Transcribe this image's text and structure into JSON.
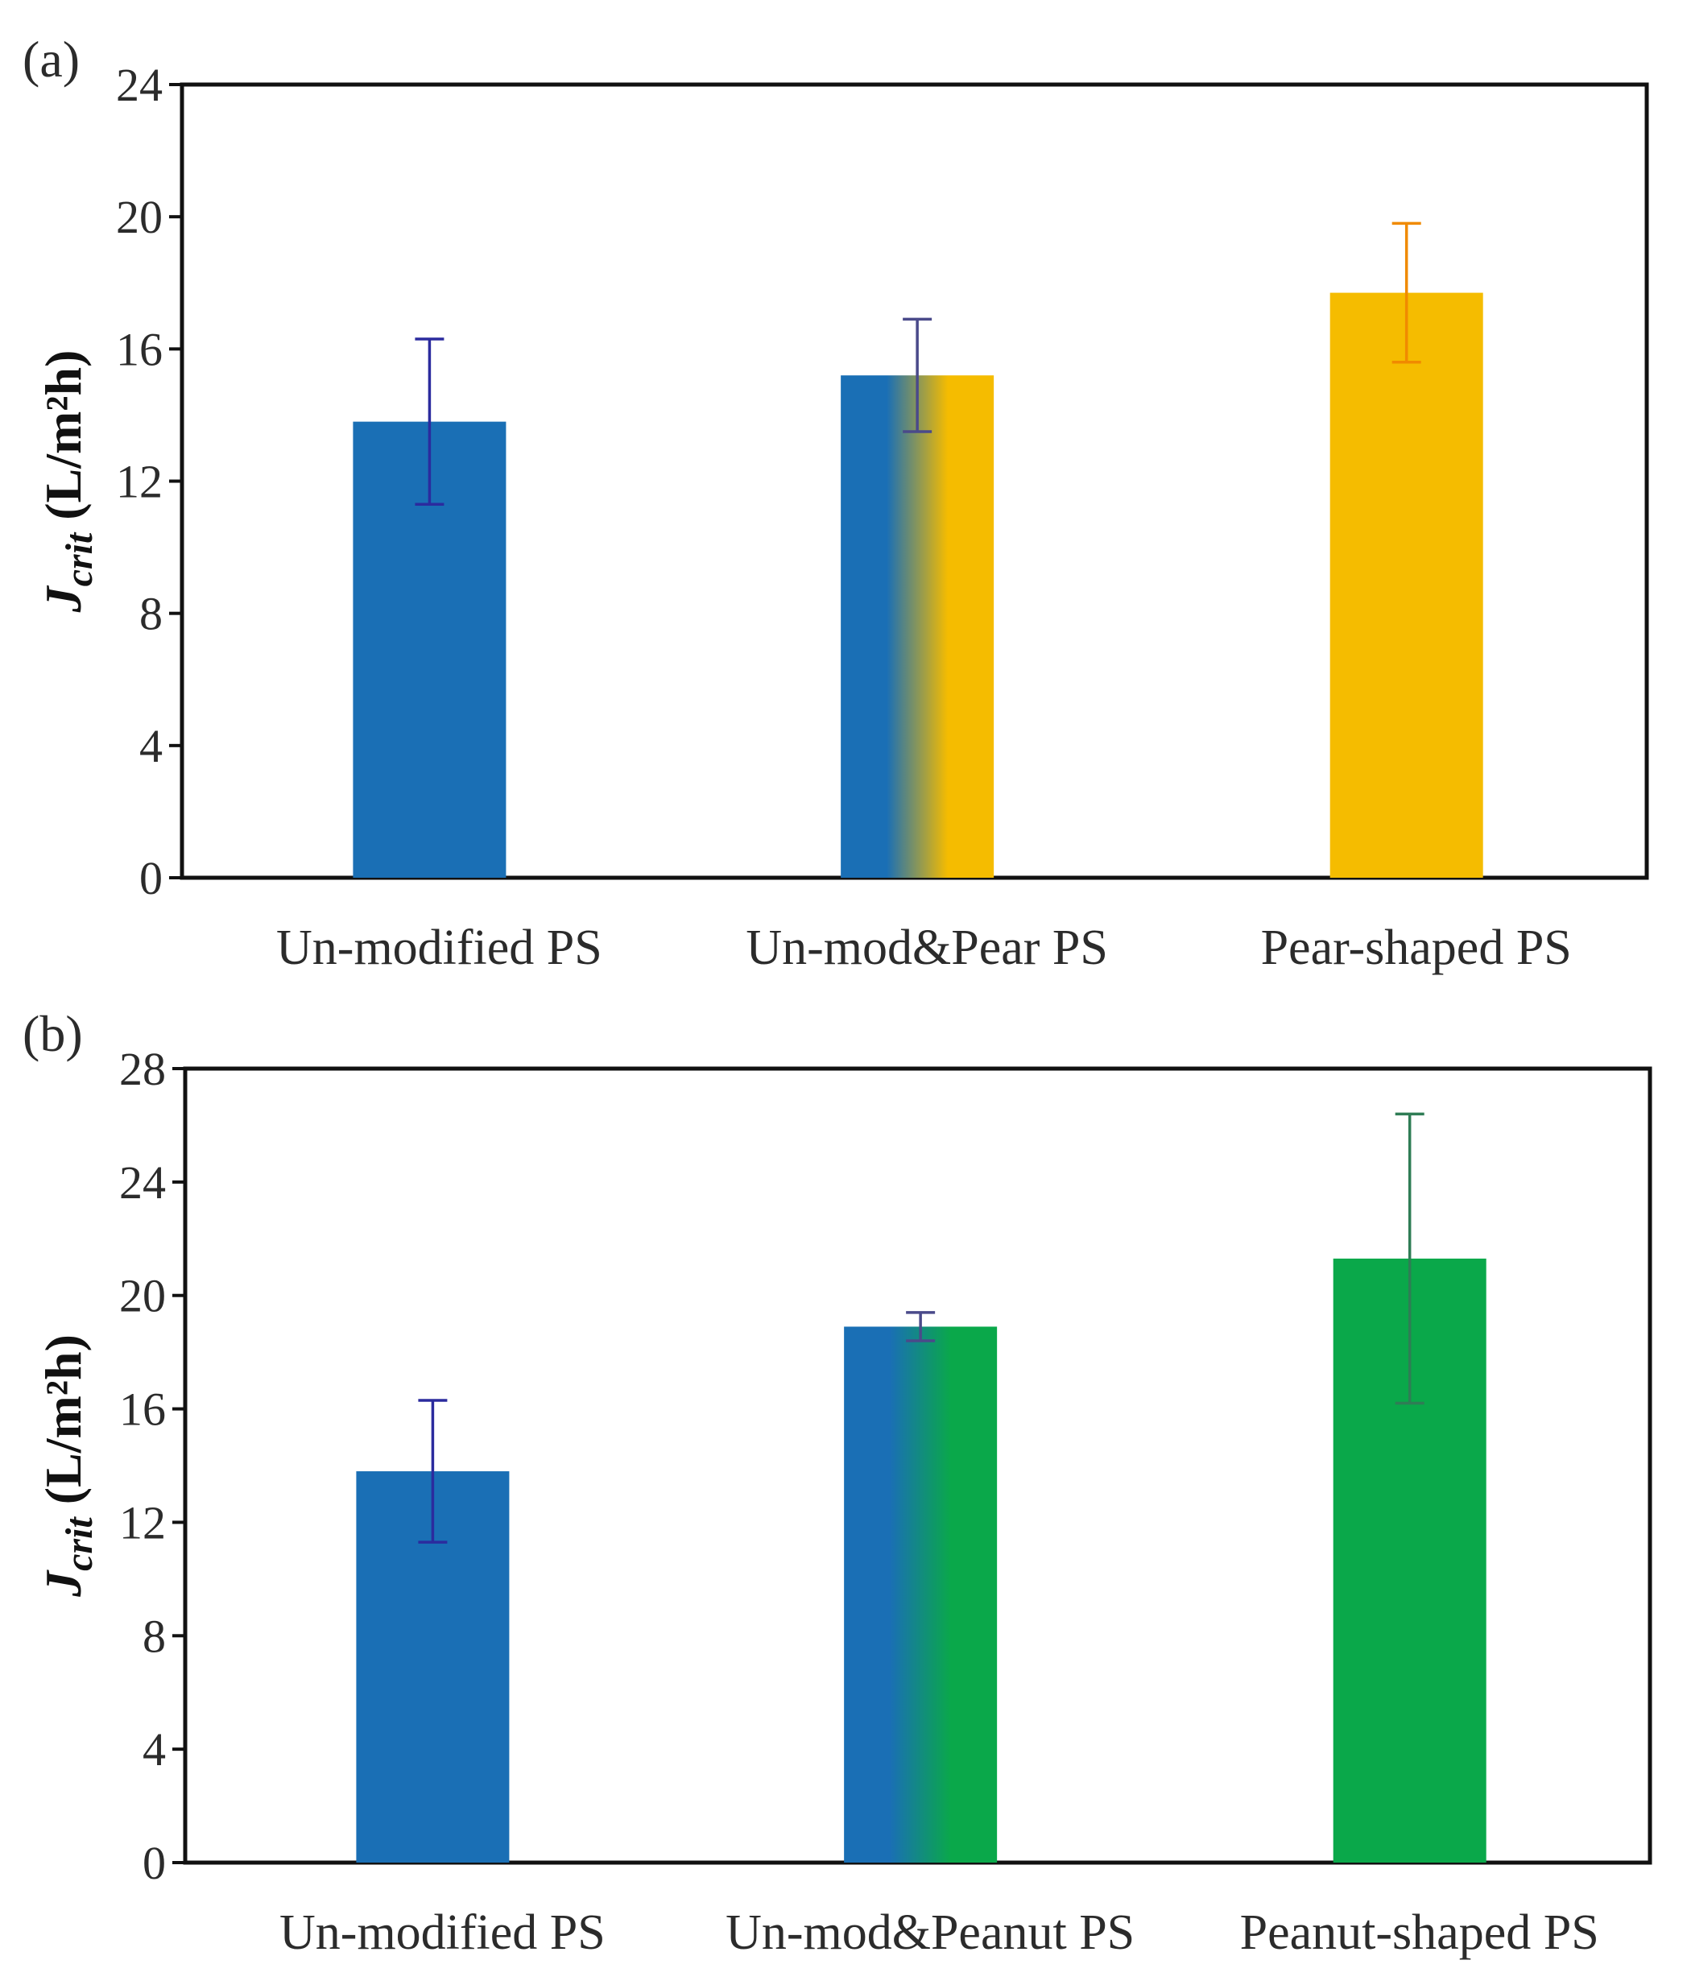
{
  "chart_data": [
    {
      "type": "bar",
      "panel_label": "(a)",
      "ylabel": {
        "symbol": "J",
        "subscript": "crit",
        "units": " (L/m²h)"
      },
      "ylim": [
        0,
        24
      ],
      "yticks": [
        0,
        4,
        8,
        12,
        16,
        20,
        24
      ],
      "categories": [
        "Un-modified PS",
        "Un-mod&Pear PS",
        "Pear-shaped PS"
      ],
      "values": [
        13.8,
        15.2,
        17.7
      ],
      "error": [
        2.5,
        1.7,
        2.1
      ],
      "colors": {
        "fill_start": [
          "#1a6fb5",
          "#1a6fb5",
          "#f5bc00"
        ],
        "fill_end": [
          "#1a6fb5",
          "#f5bc00",
          "#f5bc00"
        ],
        "error_bar": [
          "#2b2b9e",
          "#4a4a8a",
          "#f08a00"
        ]
      },
      "grid": false
    },
    {
      "type": "bar",
      "panel_label": "(b)",
      "ylabel": {
        "symbol": "J",
        "subscript": "crit",
        "units": " (L/m²h)"
      },
      "ylim": [
        0,
        28
      ],
      "yticks": [
        0,
        4,
        8,
        12,
        16,
        20,
        24,
        28
      ],
      "categories": [
        "Un-modified PS",
        "Un-mod&Peanut PS",
        "Peanut-shaped PS"
      ],
      "values": [
        13.8,
        18.9,
        21.3
      ],
      "error": [
        2.5,
        0.5,
        5.1
      ],
      "colors": {
        "fill_start": [
          "#1a6fb5",
          "#1a6fb5",
          "#0aa84a"
        ],
        "fill_end": [
          "#1a6fb5",
          "#0aa84a",
          "#0aa84a"
        ],
        "error_bar": [
          "#2b2b9e",
          "#4a4a8a",
          "#2f7d55"
        ]
      },
      "grid": false
    }
  ]
}
